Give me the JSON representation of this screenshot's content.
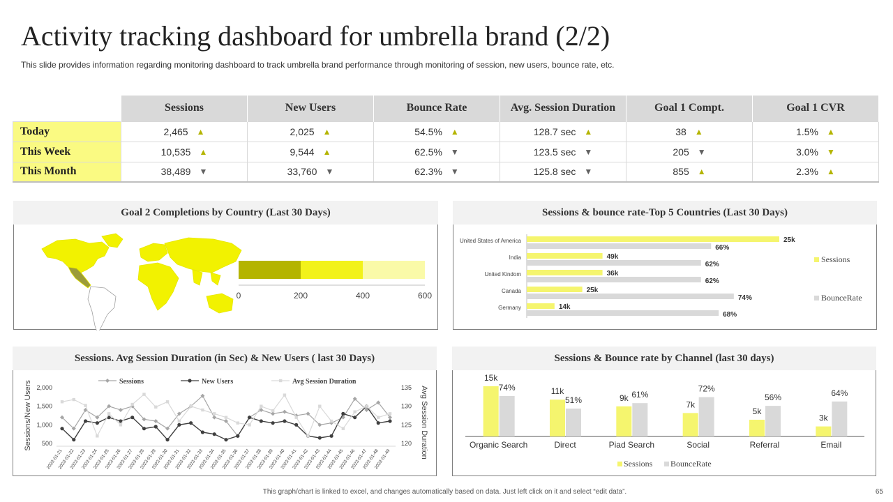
{
  "title": "Activity tracking dashboard for umbrella brand (2/2)",
  "subtitle": "This slide provides information regarding monitoring dashboard to track umbrella brand performance through monitoring of session, new users, bounce rate, etc.",
  "kpi_table": {
    "headers": [
      "Sessions",
      "New Users",
      "Bounce Rate",
      "Avg. Session Duration",
      "Goal 1 Compt.",
      "Goal 1 CVR"
    ],
    "rows": [
      {
        "label": "Today",
        "cells": [
          {
            "value": "2,465",
            "trend": "up"
          },
          {
            "value": "2,025",
            "trend": "up"
          },
          {
            "value": "54.5%",
            "trend": "up"
          },
          {
            "value": "128.7 sec",
            "trend": "up"
          },
          {
            "value": "38",
            "trend": "up"
          },
          {
            "value": "1.5%",
            "trend": "up"
          }
        ]
      },
      {
        "label": "This Week",
        "cells": [
          {
            "value": "10,535",
            "trend": "up"
          },
          {
            "value": "9,544",
            "trend": "up"
          },
          {
            "value": "62.5%",
            "trend": "down"
          },
          {
            "value": "123.5 sec",
            "trend": "down"
          },
          {
            "value": "205",
            "trend": "down"
          },
          {
            "value": "3.0%",
            "trend": "down-y"
          }
        ]
      },
      {
        "label": "This Month",
        "cells": [
          {
            "value": "38,489",
            "trend": "down"
          },
          {
            "value": "33,760",
            "trend": "down"
          },
          {
            "value": "62.3%",
            "trend": "down"
          },
          {
            "value": "125.8 sec",
            "trend": "down"
          },
          {
            "value": "855",
            "trend": "up"
          },
          {
            "value": "2.3%",
            "trend": "up"
          }
        ]
      }
    ]
  },
  "panels": {
    "goal2": "Goal 2 Completions by Country (Last 30 Days)",
    "top5": "Sessions & bounce rate-Top 5 Countries (Last 30 Days)",
    "sessions_line": "Sessions. Avg Session Duration (in Sec) & New Users ( last 30 Days)",
    "channel": "Sessions & Bounce rate by Channel (last 30 days)"
  },
  "colors": {
    "accent_yellow": "#f5f56e",
    "dark_olive": "#b4b400",
    "bright_yellow": "#f2f21a",
    "pale_yellow": "#fafaa8",
    "grey_bar": "#d9d9d9",
    "map_yellow": "#f2f200",
    "map_highlight": "#9c9c3a"
  },
  "chart_data": [
    {
      "type": "bar",
      "orientation": "horizontal-stacked",
      "title": "Goal 2 Completions by Country (Last 30 Days)",
      "segments": [
        {
          "color": "#b4b400",
          "value": 200
        },
        {
          "color": "#f2f21a",
          "value": 200
        },
        {
          "color": "#fafaa8",
          "value": 200
        }
      ],
      "xlim": [
        0,
        600
      ],
      "xticks": [
        "0",
        "200",
        "400",
        "600"
      ]
    },
    {
      "type": "bar",
      "orientation": "horizontal",
      "title": "Sessions & bounce rate-Top 5 Countries (Last 30 Days)",
      "categories": [
        "United States of America",
        "India",
        "United Kindom",
        "Canada",
        "Germany"
      ],
      "series": [
        {
          "name": "Sessions",
          "values": [
            25,
            49,
            36,
            25,
            14
          ],
          "labels": [
            "25k",
            "49k",
            "36k",
            "25k",
            "14k"
          ],
          "color": "#f5f56e"
        },
        {
          "name": "BounceRate",
          "values": [
            66,
            62,
            62,
            74,
            68
          ],
          "labels": [
            "66%",
            "62%",
            "62%",
            "74%",
            "68%"
          ],
          "color": "#d9d9d9"
        }
      ],
      "bar_lengths_relative": {
        "Sessions": [
          1.0,
          0.3,
          0.3,
          0.22,
          0.11
        ],
        "BounceRate": [
          0.73,
          0.69,
          0.69,
          0.82,
          0.76
        ]
      },
      "legend": [
        "Sessions",
        "BounceRate"
      ]
    },
    {
      "type": "line",
      "title": "Sessions. Avg Session Duration (in Sec) & New Users ( last 30 Days)",
      "ylabel": "Sessions/New Users",
      "y2label": "Avg Session Duration",
      "ylim": [
        500,
        2000
      ],
      "yticks": [
        "2,000",
        "1,500",
        "1,000",
        "500"
      ],
      "y2lim": [
        120,
        135
      ],
      "y2ticks": [
        "135",
        "130",
        "125",
        "120"
      ],
      "x": [
        "2023-01-21",
        "2023-01-22",
        "2023-01-23",
        "2023-01-24",
        "2023-01-25",
        "2023-01-26",
        "2023-01-27",
        "2023-01-28",
        "2023-01-29",
        "2023-01-30",
        "2023-01-31",
        "2023-01-32",
        "2023-01-33",
        "2023-01-34",
        "2023-01-35",
        "2023-01-36",
        "2023-01-37",
        "2023-01-38",
        "2023-01-39",
        "2023-01-40",
        "2023-01-41",
        "2023-01-42",
        "2023-01-43",
        "2023-01-44",
        "2023-01-45",
        "2023-01-46",
        "2023-01-47",
        "2023-01-48",
        "2023-01-49"
      ],
      "series": [
        {
          "name": "Sessions",
          "axis": "left",
          "color": "#a6a6a6",
          "marker": "diamond",
          "values": [
            1200,
            900,
            1400,
            1200,
            1500,
            1400,
            1500,
            1150,
            1100,
            900,
            1300,
            1500,
            1780,
            1200,
            1100,
            700,
            1200,
            1400,
            1300,
            1350,
            1250,
            1300,
            1000,
            1050,
            1200,
            1700,
            1400,
            1600,
            1200
          ]
        },
        {
          "name": "New Users",
          "axis": "left",
          "color": "#404040",
          "marker": "circle",
          "values": [
            900,
            600,
            1100,
            1050,
            1200,
            1100,
            1200,
            900,
            950,
            600,
            1000,
            1050,
            800,
            750,
            600,
            700,
            1200,
            1100,
            1050,
            1100,
            1000,
            700,
            650,
            700,
            1300,
            1200,
            1500,
            1050,
            1100
          ]
        },
        {
          "name": "Avg Session Duration",
          "axis": "right",
          "color": "#d9d9d9",
          "marker": "square",
          "values": [
            131.2,
            131.8,
            130.2,
            122.0,
            128.0,
            125.0,
            130.5,
            133.2,
            129.8,
            131.2,
            126.0,
            130.0,
            129.0,
            128.0,
            127.0,
            125.5,
            125.0,
            130.0,
            128.8,
            133.0,
            127.0,
            122.0,
            130.0,
            126.0,
            124.0,
            128.5,
            130.0,
            127.0,
            128.0
          ]
        }
      ],
      "legend": [
        "Sessions",
        "New Users",
        "Avg Session Duration"
      ]
    },
    {
      "type": "bar",
      "title": "Sessions & Bounce rate by Channel (last 30 days)",
      "categories": [
        "Organic Search",
        "Direct",
        "Piad Search",
        "Social",
        "Referral",
        "Email"
      ],
      "series": [
        {
          "name": "Sessions",
          "values": [
            15,
            11,
            9,
            7,
            5,
            3
          ],
          "labels": [
            "15k",
            "11k",
            "9k",
            "7k",
            "5k",
            "3k"
          ],
          "color": "#f5f56e"
        },
        {
          "name": "BounceRate",
          "values": [
            74,
            51,
            61,
            72,
            56,
            64
          ],
          "labels": [
            "74%",
            "51%",
            "61%",
            "72%",
            "56%",
            "64%"
          ],
          "color": "#d9d9d9"
        }
      ],
      "legend": [
        "Sessions",
        "BounceRate"
      ]
    }
  ],
  "footnote": "This graph/chart is linked to excel, and changes automatically based on data. Just left click on it and select “edit data”.",
  "page_number": "65"
}
